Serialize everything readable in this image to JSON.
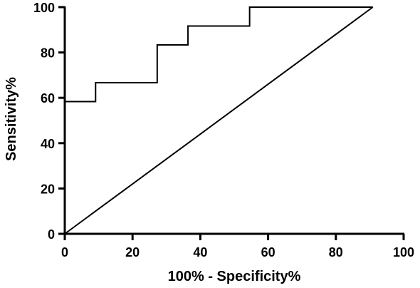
{
  "chart_data": {
    "type": "line",
    "xlabel": "100% - Specificity%",
    "ylabel": "Sensitivity%",
    "xlim": [
      0,
      100
    ],
    "ylim": [
      0,
      100
    ],
    "x_ticks": [
      "0",
      "20",
      "40",
      "60",
      "80",
      "100"
    ],
    "y_ticks": [
      "0",
      "20",
      "40",
      "60",
      "80",
      "100"
    ],
    "grid": false,
    "series": [
      {
        "style": "step",
        "color": "#000000",
        "x": [
          0,
          9.09,
          9.09,
          27.27,
          27.27,
          36.36,
          36.36,
          54.55,
          54.55,
          90.91
        ],
        "y": [
          58.33,
          58.33,
          66.67,
          66.67,
          83.33,
          83.33,
          91.67,
          91.67,
          100,
          100
        ]
      },
      {
        "style": "reference-line",
        "color": "#000000",
        "x": [
          0,
          90.91
        ],
        "y": [
          0,
          100
        ]
      }
    ]
  }
}
